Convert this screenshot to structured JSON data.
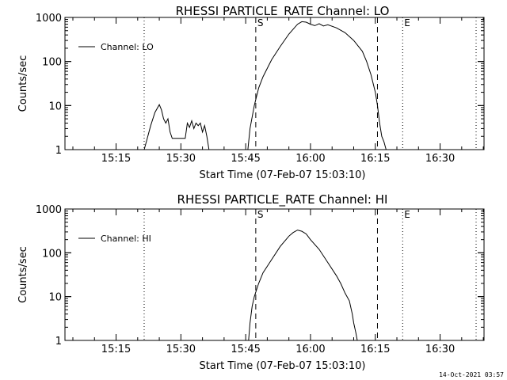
{
  "footer": {
    "timestamp": "14-Oct-2021 03:57"
  },
  "chart_data": [
    {
      "type": "line",
      "title": "RHESSI PARTICLE_RATE Channel: LO",
      "xlabel": "Start Time (07-Feb-07 15:03:10)",
      "ylabel": "Counts/sec",
      "yscale": "log",
      "ylim": [
        1,
        1000
      ],
      "xlim_minutes_after_start": [
        0,
        97
      ],
      "x_ticks": [
        "15:15",
        "15:30",
        "15:45",
        "16:00",
        "16:15",
        "16:30"
      ],
      "y_ticks": [
        "1",
        "10",
        "100",
        "1000"
      ],
      "legend": "Channel: LO",
      "legend_position": "top-left",
      "markers": [
        {
          "label": "",
          "time": "15:21:30",
          "style": "dotted"
        },
        {
          "label": "S",
          "time": "15:47:20",
          "style": "dashed"
        },
        {
          "label": "",
          "time": "16:15:30",
          "style": "dashed"
        },
        {
          "label": "E",
          "time": "16:21:20",
          "style": "dotted"
        },
        {
          "label": "",
          "time": "16:38:20",
          "style": "dotted"
        }
      ],
      "series": [
        {
          "segments": [
            {
              "t": [
                "15:21:30",
                "15:22:00",
                "15:23:00",
                "15:24:00",
                "15:25:00",
                "15:25:30",
                "15:26:00",
                "15:26:30",
                "15:27:00",
                "15:27:30",
                "15:28:00",
                "15:31:00",
                "15:31:30",
                "15:32:00",
                "15:32:30",
                "15:33:00",
                "15:33:30",
                "15:34:00",
                "15:34:30",
                "15:35:00",
                "15:35:30",
                "15:36:00",
                "15:36:30"
              ],
              "y": [
                1,
                1.5,
                3.5,
                7,
                10.5,
                8,
                5,
                4,
                5,
                2.5,
                1.8,
                1.8,
                4,
                3.2,
                4.5,
                3,
                4,
                3.5,
                4,
                2.5,
                3.5,
                2,
                1
              ]
            },
            {
              "t": [
                "15:45:30",
                "15:46:00",
                "15:47:00",
                "15:48:00",
                "15:49:00",
                "15:51:00",
                "15:53:00",
                "15:55:00",
                "15:57:00",
                "15:58:00",
                "15:59:00",
                "16:00:00",
                "16:01:00",
                "16:02:00",
                "16:03:00",
                "16:04:00",
                "16:06:00",
                "16:08:00",
                "16:10:00",
                "16:12:00",
                "16:13:00",
                "16:14:00",
                "16:15:00",
                "16:15:30",
                "16:16:00",
                "16:16:30",
                "16:17:00",
                "16:17:30"
              ],
              "y": [
                1,
                3,
                10,
                25,
                45,
                110,
                220,
                420,
                700,
                800,
                780,
                700,
                650,
                720,
                640,
                680,
                580,
                450,
                300,
                170,
                100,
                50,
                20,
                10,
                4,
                2,
                1.5,
                1
              ]
            }
          ]
        }
      ]
    },
    {
      "type": "line",
      "title": "RHESSI PARTICLE_RATE Channel: HI",
      "xlabel": "Start Time (07-Feb-07 15:03:10)",
      "ylabel": "Counts/sec",
      "yscale": "log",
      "ylim": [
        1,
        1000
      ],
      "xlim_minutes_after_start": [
        0,
        97
      ],
      "x_ticks": [
        "15:15",
        "15:30",
        "15:45",
        "16:00",
        "16:15",
        "16:30"
      ],
      "y_ticks": [
        "1",
        "10",
        "100",
        "1000"
      ],
      "legend": "Channel: HI",
      "legend_position": "top-left",
      "markers": [
        {
          "label": "",
          "time": "15:21:30",
          "style": "dotted"
        },
        {
          "label": "S",
          "time": "15:47:20",
          "style": "dashed"
        },
        {
          "label": "",
          "time": "16:15:30",
          "style": "dashed"
        },
        {
          "label": "E",
          "time": "16:21:20",
          "style": "dotted"
        },
        {
          "label": "",
          "time": "16:38:20",
          "style": "dotted"
        }
      ],
      "series": [
        {
          "segments": [
            {
              "t": [
                "15:45:40",
                "15:46:00",
                "15:46:30",
                "15:47:00",
                "15:48:00",
                "15:49:00",
                "15:51:00",
                "15:53:00",
                "15:55:00",
                "15:56:00",
                "15:57:00",
                "15:58:00",
                "15:59:00",
                "16:00:00",
                "16:02:00",
                "16:04:00",
                "16:06:00",
                "16:07:00",
                "16:08:00",
                "16:09:00",
                "16:09:40",
                "16:10:00",
                "16:10:30",
                "16:10:50"
              ],
              "y": [
                1,
                2.5,
                6,
                10,
                20,
                35,
                70,
                140,
                240,
                290,
                330,
                310,
                270,
                200,
                120,
                60,
                30,
                20,
                12,
                8,
                4,
                2.5,
                1.5,
                1
              ]
            }
          ]
        }
      ]
    }
  ]
}
